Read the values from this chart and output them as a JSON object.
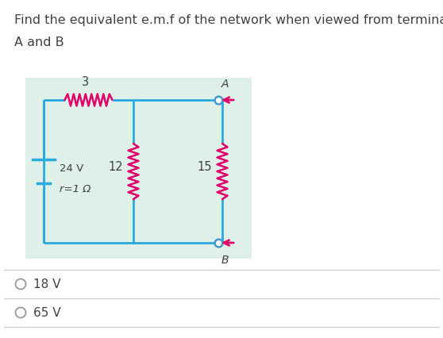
{
  "title_line1": "Find the equivalent e.m.f of the network when viewed from terminals",
  "title_line2": "A and B",
  "title_color": "#404040",
  "title_fontsize": 11.5,
  "bg_box_color": "#dff0e8",
  "circuit_line_color": "#29aadd",
  "resistor_color": "#e0006a",
  "terminal_arrow_color": "#e0006a",
  "terminal_dot_color": "#4499cc",
  "circuit_linewidth": 2.0,
  "resistor_linewidth": 1.8,
  "battery_label": "24 V",
  "battery_r_label": "r=1 Ω",
  "r1_label": "3",
  "r2_label": "12",
  "r3_label": "15",
  "terminal_A_label": "A",
  "terminal_B_label": "B",
  "option1": "18 V",
  "option2": "65 V",
  "option_fontsize": 11,
  "option_color": "#404040",
  "sep_color": "#cccccc"
}
